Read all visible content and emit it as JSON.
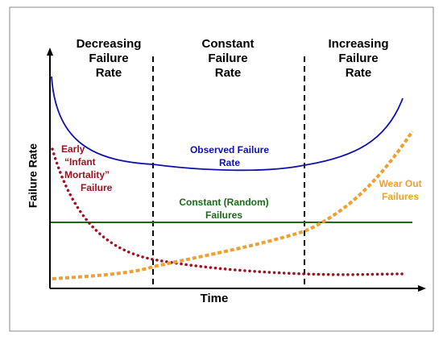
{
  "regions": [
    {
      "lines": [
        "Decreasing",
        "Failure",
        "Rate"
      ]
    },
    {
      "lines": [
        "Constant",
        "Failure",
        "Rate"
      ]
    },
    {
      "lines": [
        "Increasing",
        "Failure",
        "Rate"
      ]
    }
  ],
  "y_axis_label": "Failure Rate",
  "x_axis_label": "Time",
  "curves": {
    "observed": {
      "lines": [
        "Observed Failure",
        "Rate"
      ]
    },
    "early": {
      "lines": [
        "Early",
        "“Infant",
        "Mortality”",
        "Failure"
      ]
    },
    "constant": {
      "lines": [
        "Constant (Random)",
        "Failures"
      ]
    },
    "wear_out": {
      "lines": [
        "Wear Out",
        "Failures"
      ]
    }
  }
}
